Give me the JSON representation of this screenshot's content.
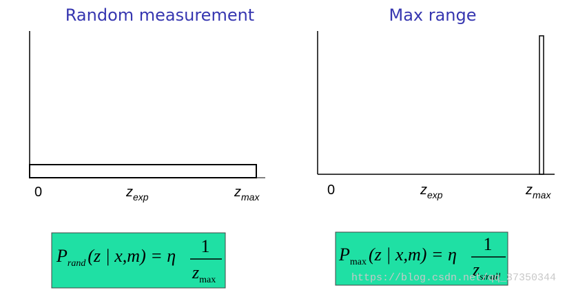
{
  "panels": [
    {
      "title": "Random measurement",
      "axis_labels": {
        "zero": "0",
        "exp": {
          "base": "z",
          "sub": "exp"
        },
        "max": {
          "base": "z",
          "sub": "max"
        }
      },
      "formula": {
        "p": "P",
        "p_sub": "rand",
        "body": "(z | x,m) = η",
        "numerator": "1",
        "den": "z",
        "den_sub": "max"
      }
    },
    {
      "title": "Max range",
      "axis_labels": {
        "zero": "0",
        "exp": {
          "base": "z",
          "sub": "exp"
        },
        "max": {
          "base": "z",
          "sub": "max"
        }
      },
      "formula": {
        "p": "P",
        "p_sub": "max",
        "body": "(z | x,m) = η",
        "numerator": "1",
        "den": "z",
        "den_sub": "small"
      }
    }
  ],
  "watermark": "https://blog.csdn.net/qq_37350344"
}
